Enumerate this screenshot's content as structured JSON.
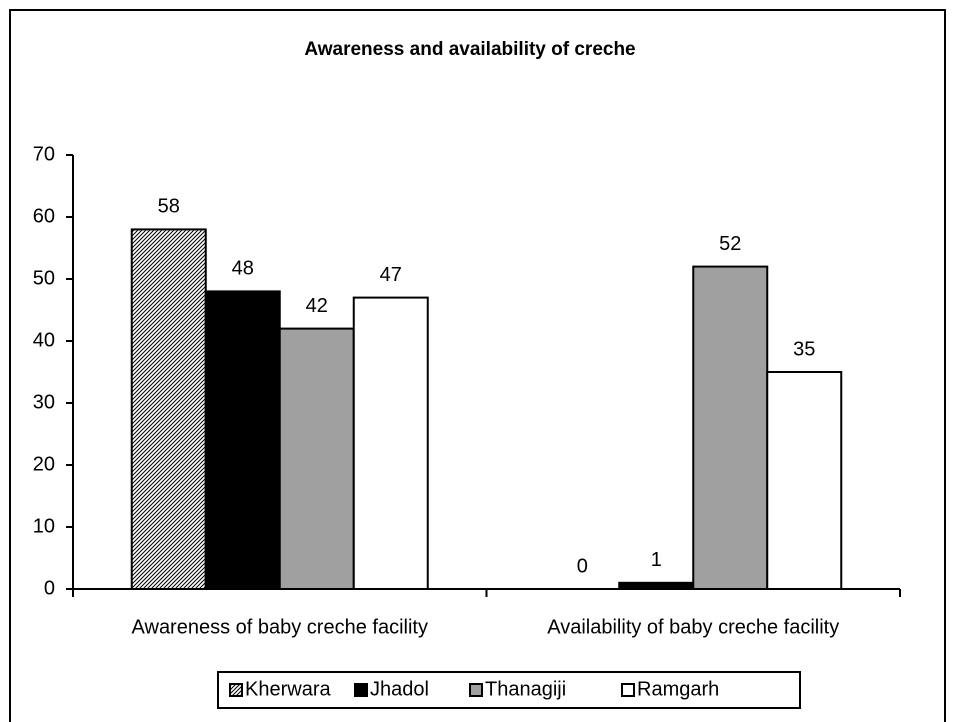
{
  "chart_data": {
    "type": "bar",
    "title": "Awareness and availability  of creche",
    "categories": [
      "Awareness of baby creche facility",
      "Availability of baby creche facility"
    ],
    "series": [
      {
        "name": "Kherwara",
        "color": "#000000",
        "pattern": "hatch",
        "values": [
          58,
          0
        ]
      },
      {
        "name": "Jhadol",
        "color": "#000000",
        "values": [
          48,
          1
        ]
      },
      {
        "name": "Thanagiji",
        "color": "#a0a0a0",
        "values": [
          42,
          52
        ]
      },
      {
        "name": "Ramgarh",
        "color": "#ffffff",
        "values": [
          47,
          35
        ]
      }
    ],
    "ylim": [
      0,
      70
    ],
    "yticks": [
      0,
      10,
      20,
      30,
      40,
      50,
      60,
      70
    ],
    "legend": "bottom"
  }
}
